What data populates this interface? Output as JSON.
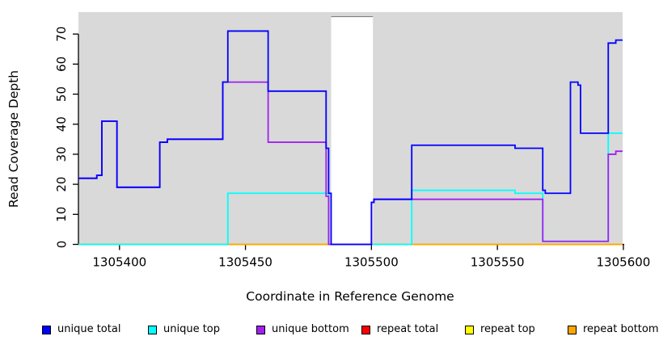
{
  "chart_data": {
    "type": "line",
    "subtype": "step",
    "title": "",
    "xlabel": "Coordinate in Reference Genome",
    "ylabel": "Read Coverage Depth",
    "xlim": [
      1305383.7,
      1305599.7
    ],
    "ylim": [
      0,
      77.3
    ],
    "xticks": [
      1305400,
      1305450,
      1305500,
      1305550,
      1305600
    ],
    "yticks": [
      0,
      10,
      20,
      30,
      40,
      50,
      60,
      70
    ],
    "grid": "off",
    "plot_bg": "#d9d9d9",
    "axis_color": "#000000",
    "gap_band": {
      "from": 1305484,
      "to": 1305500.6,
      "top_value": 75.8,
      "fill": "#ffffff",
      "border": "#808080"
    },
    "series": [
      {
        "name": "repeat total",
        "color": "#ff0000",
        "segments": [
          [
            1305383.7,
            1305599.7,
            0
          ]
        ]
      },
      {
        "name": "repeat top",
        "color": "#ffff00",
        "segments": [
          [
            1305383.7,
            1305599.7,
            0
          ]
        ]
      },
      {
        "name": "repeat bottom",
        "color": "#ffa500",
        "segments": [
          [
            1305383.7,
            1305599.7,
            0
          ]
        ]
      },
      {
        "name": "unique top",
        "color": "#00ffff",
        "segments": [
          [
            1305383.7,
            1305443,
            0
          ],
          [
            1305443,
            1305483,
            17
          ],
          [
            1305483,
            1305516,
            0
          ],
          [
            1305516,
            1305557,
            18
          ],
          [
            1305557,
            1305568,
            17
          ],
          [
            1305568,
            1305594,
            1
          ],
          [
            1305594,
            1305599.7,
            37
          ]
        ]
      },
      {
        "name": "unique bottom",
        "color": "#a020f0",
        "segments": [
          [
            1305383.7,
            1305391,
            22
          ],
          [
            1305391,
            1305393,
            23
          ],
          [
            1305393,
            1305399,
            41
          ],
          [
            1305399,
            1305416,
            19
          ],
          [
            1305416,
            1305419,
            34
          ],
          [
            1305419,
            1305441,
            35
          ],
          [
            1305441,
            1305459,
            54
          ],
          [
            1305459,
            1305482,
            34
          ],
          [
            1305482,
            1305483,
            16
          ],
          [
            1305483,
            1305500,
            0
          ],
          [
            1305500,
            1305501,
            14
          ],
          [
            1305501,
            1305568,
            15
          ],
          [
            1305568,
            1305594,
            1
          ],
          [
            1305594,
            1305597,
            30
          ],
          [
            1305597,
            1305599.7,
            31
          ]
        ]
      },
      {
        "name": "unique total",
        "color": "#0000ff",
        "segments": [
          [
            1305383.7,
            1305391,
            22
          ],
          [
            1305391,
            1305393,
            23
          ],
          [
            1305393,
            1305399,
            41
          ],
          [
            1305399,
            1305416,
            19
          ],
          [
            1305416,
            1305419,
            34
          ],
          [
            1305419,
            1305441,
            35
          ],
          [
            1305441,
            1305443,
            54
          ],
          [
            1305443,
            1305459,
            71
          ],
          [
            1305459,
            1305482,
            51
          ],
          [
            1305482,
            1305483,
            32
          ],
          [
            1305483,
            1305484,
            17
          ],
          [
            1305484,
            1305500,
            0
          ],
          [
            1305500,
            1305501,
            14
          ],
          [
            1305501,
            1305516,
            15
          ],
          [
            1305516,
            1305557,
            33
          ],
          [
            1305557,
            1305568,
            32
          ],
          [
            1305568,
            1305569,
            18
          ],
          [
            1305569,
            1305579,
            17
          ],
          [
            1305579,
            1305582,
            54
          ],
          [
            1305582,
            1305583,
            53
          ],
          [
            1305583,
            1305594,
            37
          ],
          [
            1305594,
            1305597,
            67
          ],
          [
            1305597,
            1305599.7,
            68
          ]
        ]
      }
    ]
  },
  "legend": {
    "items": [
      {
        "label": "unique total",
        "color": "#0000ff"
      },
      {
        "label": "unique top",
        "color": "#00ffff"
      },
      {
        "label": "unique bottom",
        "color": "#a020f0"
      },
      {
        "label": "repeat total",
        "color": "#ff0000"
      },
      {
        "label": "repeat top",
        "color": "#ffff00"
      },
      {
        "label": "repeat bottom",
        "color": "#ffa500"
      }
    ]
  }
}
